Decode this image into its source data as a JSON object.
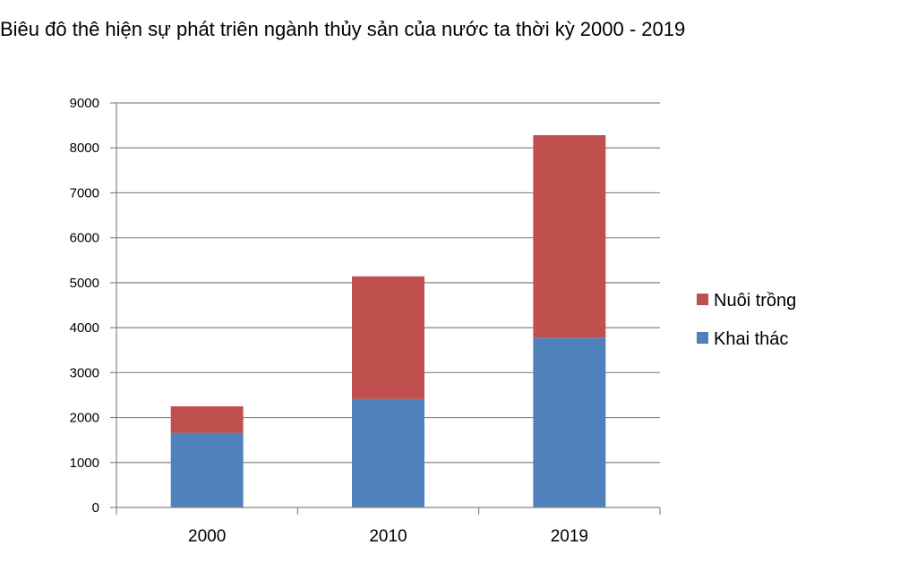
{
  "chart_data": {
    "type": "bar",
    "stacked": true,
    "title": "Biêu đô thê hiện sự phát triên ngành thủy sản của nước ta  thời kỳ 2000 - 2019",
    "xlabel": "",
    "ylabel": "",
    "categories": [
      "2000",
      "2010",
      "2019"
    ],
    "series": [
      {
        "name": "Khai thác",
        "values": [
          1660,
          2414,
          3777
        ],
        "color": "#4F81BD"
      },
      {
        "name": "Nuôi trồng",
        "values": [
          590,
          2728,
          4505
        ],
        "color": "#C0504D"
      }
    ],
    "ylim": [
      0,
      9000
    ],
    "yticks": [
      "0",
      "1000",
      "2000",
      "3000",
      "4000",
      "5000",
      "6000",
      "7000",
      "8000",
      "9000"
    ],
    "grid": true,
    "legend": "right"
  }
}
